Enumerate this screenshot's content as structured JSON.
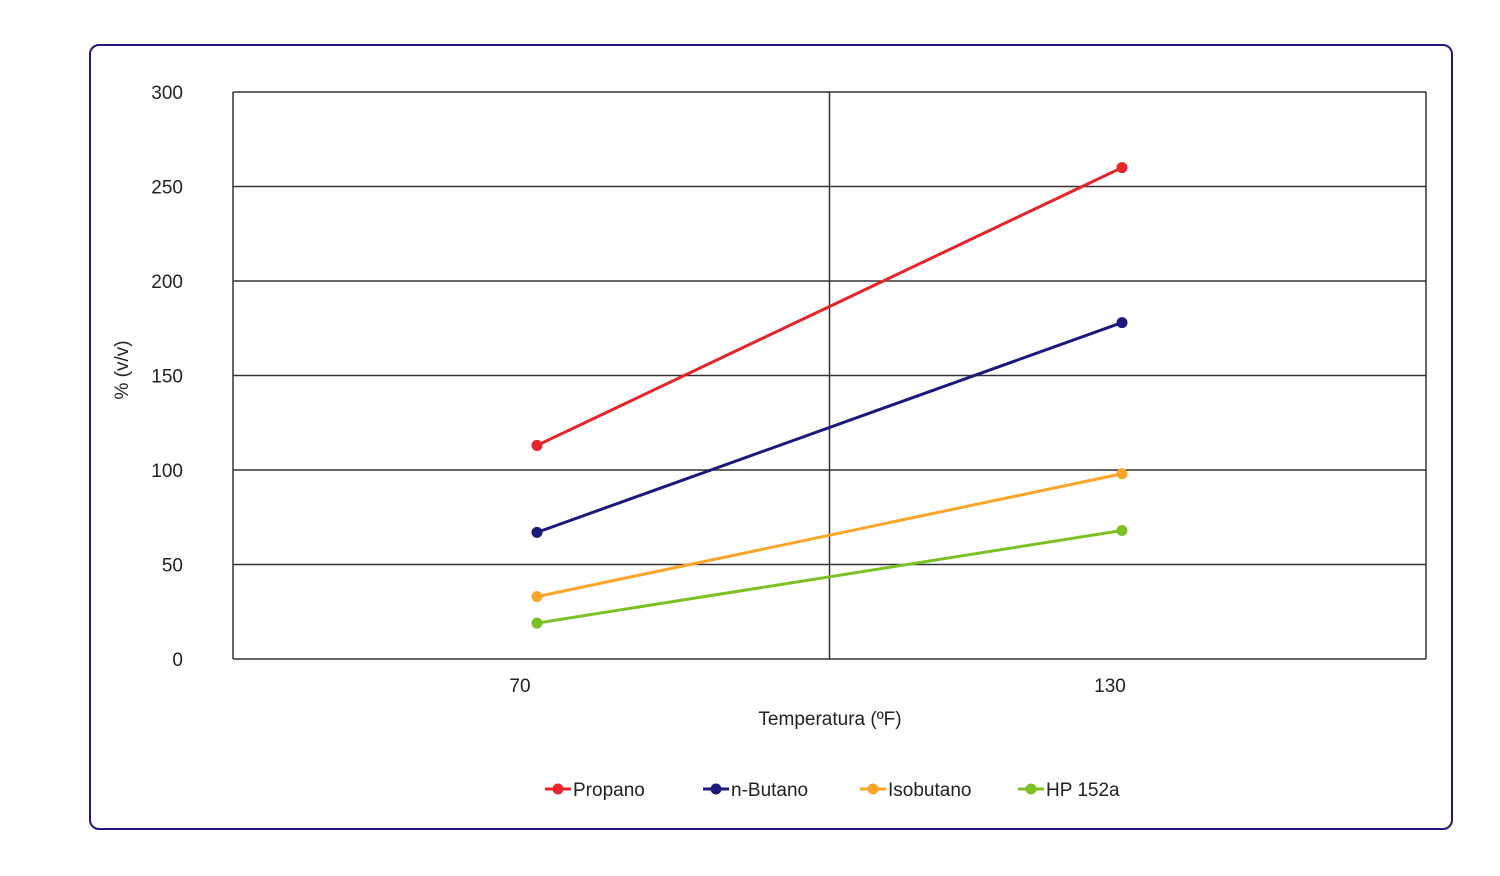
{
  "chart_data": {
    "type": "line",
    "title": "",
    "xlabel": "Temperatura (ºF)",
    "ylabel": "% (v/v)",
    "categories": [
      "70",
      "130"
    ],
    "ylim": [
      0,
      300
    ],
    "yticks": [
      0,
      50,
      100,
      150,
      200,
      250,
      300
    ],
    "grid": true,
    "legend_position": "bottom",
    "series": [
      {
        "name": "Propano",
        "color": "#e4262c",
        "values": [
          113,
          260
        ]
      },
      {
        "name": "n-Butano",
        "color": "#1b1a7a",
        "values": [
          67,
          178
        ]
      },
      {
        "name": "Isobutano",
        "color": "#f9a52a",
        "values": [
          33,
          98
        ]
      },
      {
        "name": "HP 152a",
        "color": "#7cc124",
        "values": [
          19,
          68
        ]
      }
    ]
  }
}
